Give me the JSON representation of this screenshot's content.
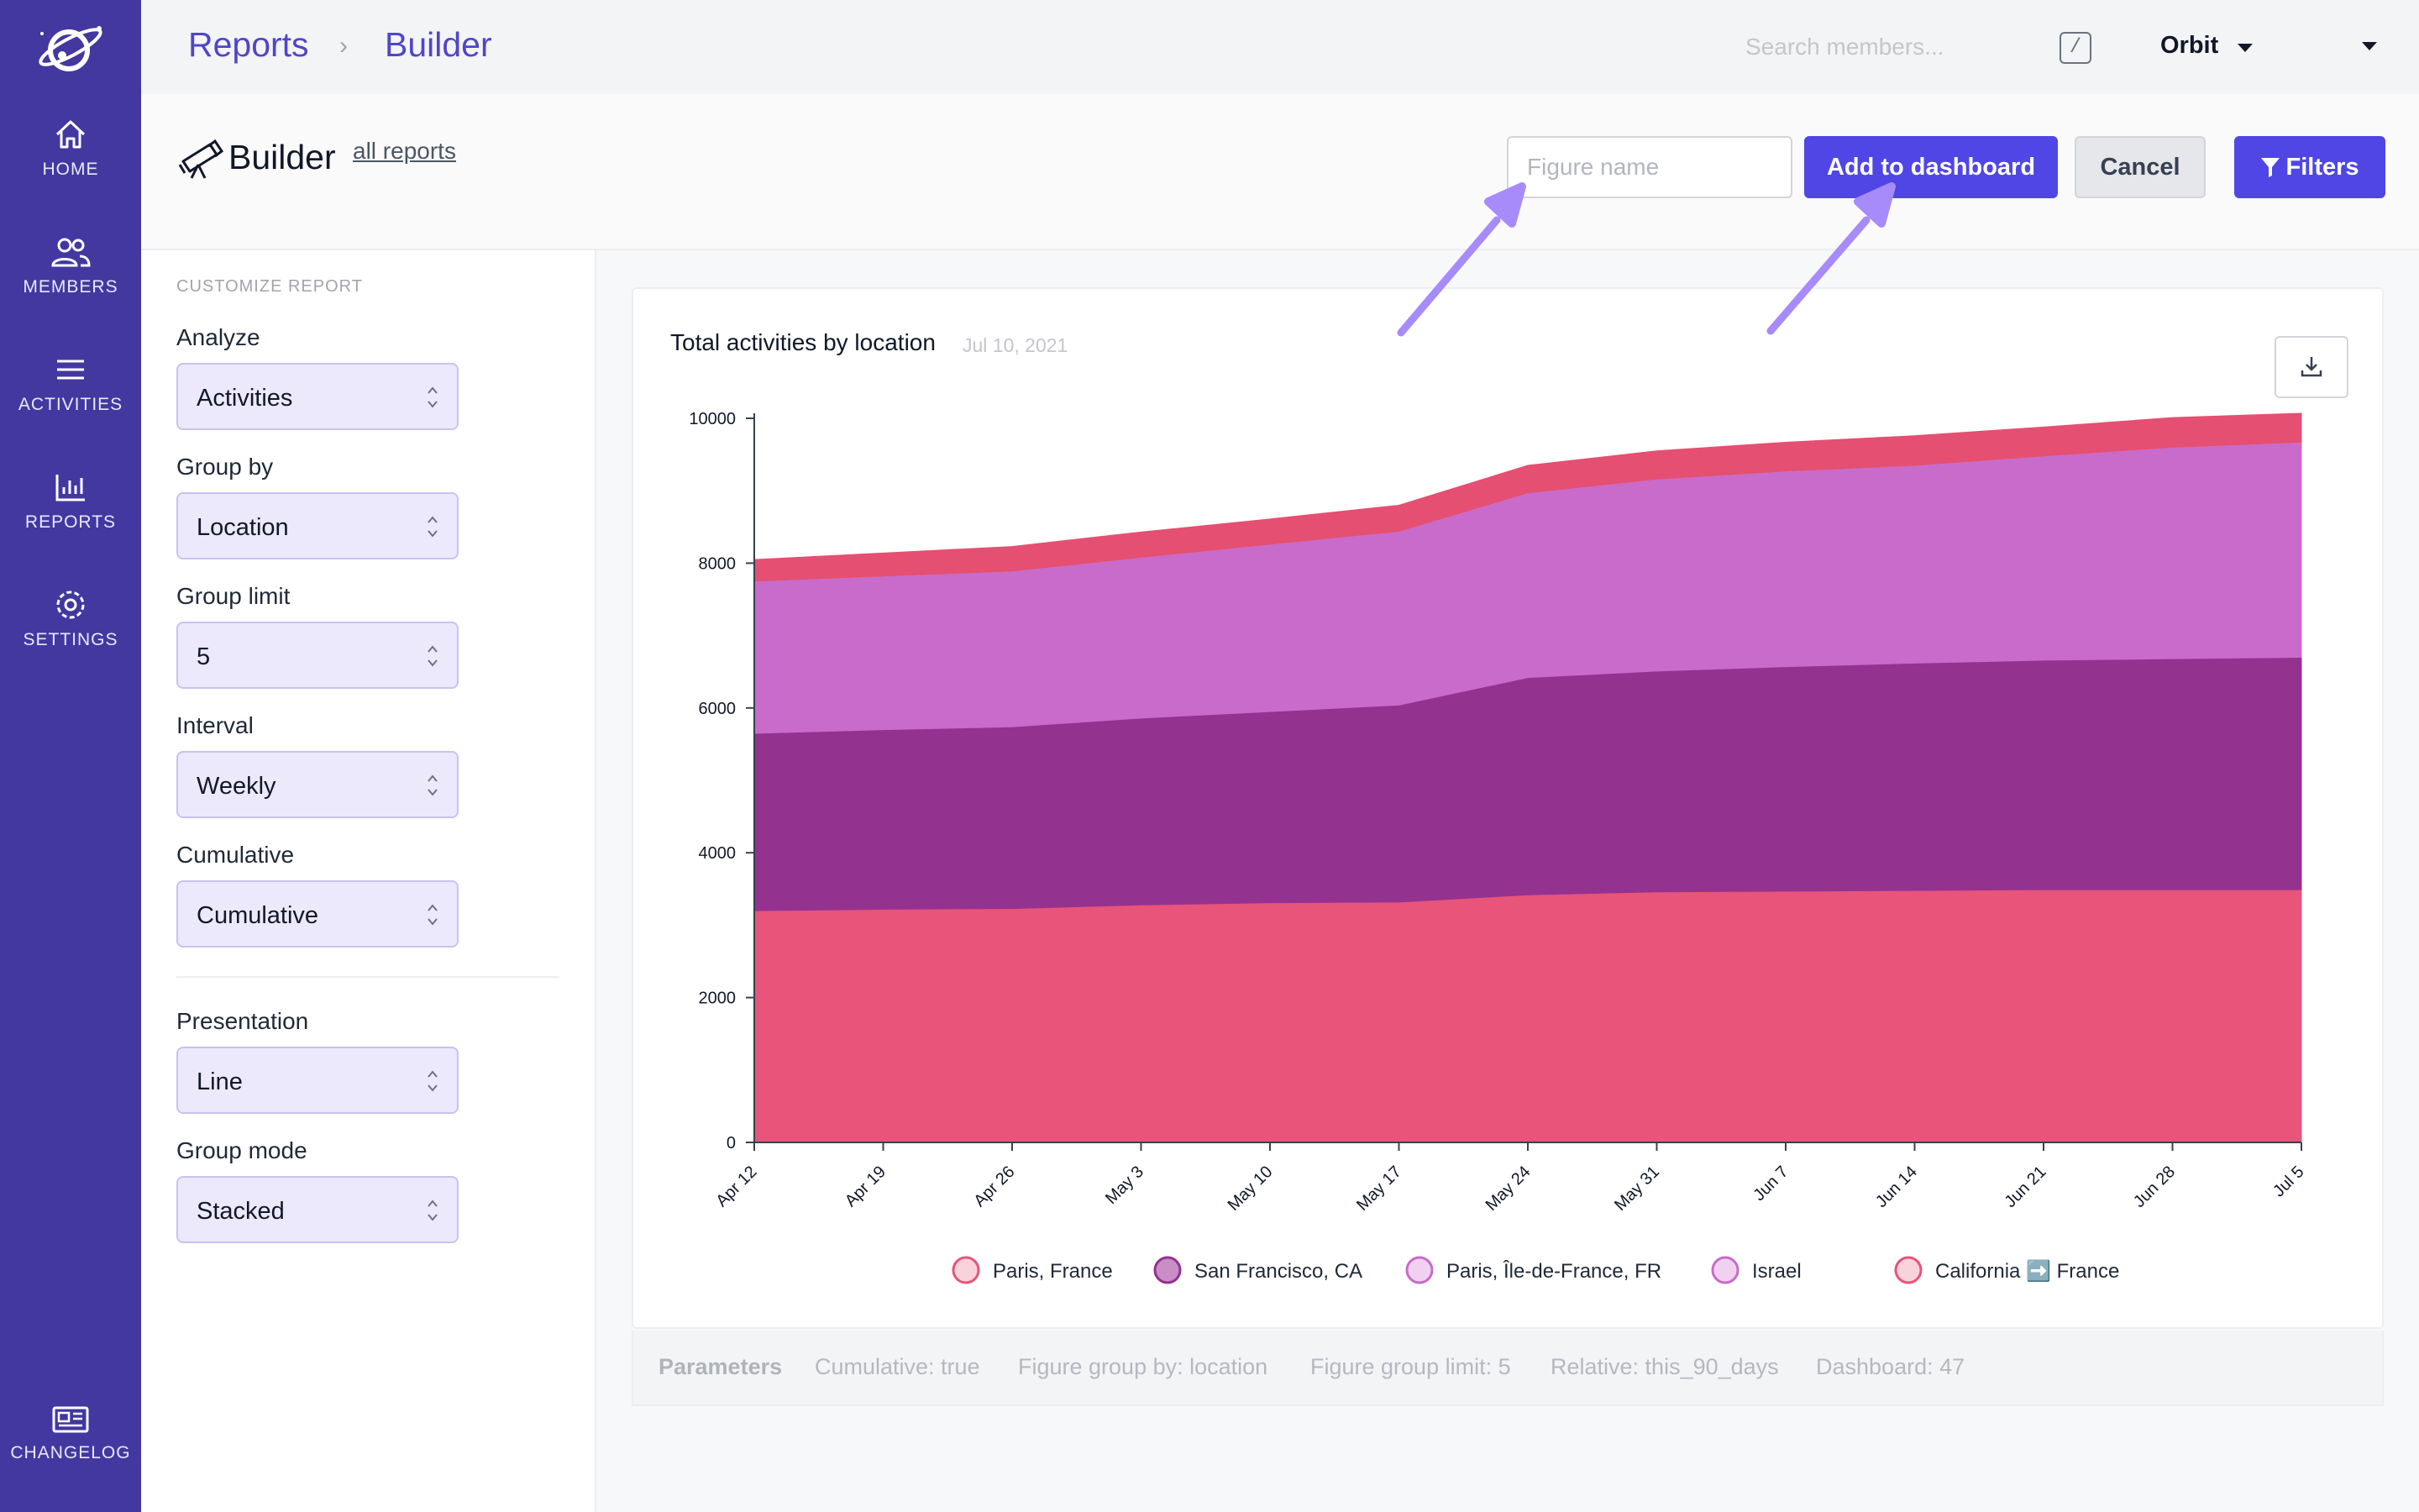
{
  "sidebar": {
    "items": [
      {
        "label": "HOME",
        "icon": "home-icon"
      },
      {
        "label": "MEMBERS",
        "icon": "members-icon"
      },
      {
        "label": "ACTIVITIES",
        "icon": "activities-icon"
      },
      {
        "label": "REPORTS",
        "icon": "reports-icon"
      },
      {
        "label": "SETTINGS",
        "icon": "settings-icon"
      }
    ],
    "bottom_item": {
      "label": "CHANGELOG",
      "icon": "newspaper-icon"
    }
  },
  "topbar": {
    "breadcrumb": [
      "Reports",
      "Builder"
    ],
    "search_placeholder": "Search members...",
    "shortcut_key": "/",
    "workspace": "Orbit"
  },
  "header": {
    "title": "Builder",
    "all_reports_link": "all reports",
    "figure_name_placeholder": "Figure name",
    "add_button": "Add to dashboard",
    "cancel_button": "Cancel",
    "filters_button": "Filters"
  },
  "customize": {
    "section_title": "CUSTOMIZE REPORT",
    "fields": [
      {
        "label": "Analyze",
        "value": "Activities"
      },
      {
        "label": "Group by",
        "value": "Location"
      },
      {
        "label": "Group limit",
        "value": "5"
      },
      {
        "label": "Interval",
        "value": "Weekly"
      },
      {
        "label": "Cumulative",
        "value": "Cumulative"
      },
      {
        "label": "Presentation",
        "value": "Line"
      },
      {
        "label": "Group mode",
        "value": "Stacked"
      }
    ]
  },
  "chart": {
    "title": "Total activities by location",
    "date": "Jul 10, 2021"
  },
  "chart_data": {
    "type": "area",
    "stacked": true,
    "x": [
      "Apr 12",
      "Apr 19",
      "Apr 26",
      "May 3",
      "May 10",
      "May 17",
      "May 24",
      "May 31",
      "Jun 7",
      "Jun 14",
      "Jun 21",
      "Jun 28",
      "Jul 5"
    ],
    "ylim": [
      0,
      10000
    ],
    "yticks": [
      0,
      2000,
      4000,
      6000,
      8000,
      10000
    ],
    "series": [
      {
        "name": "Paris, France",
        "color": "#e8547a",
        "values": [
          3200,
          3220,
          3230,
          3280,
          3310,
          3320,
          3420,
          3460,
          3470,
          3480,
          3490,
          3490,
          3490
        ]
      },
      {
        "name": "San Francisco, CA",
        "color": "#943290",
        "values": [
          2450,
          2480,
          2510,
          2580,
          2640,
          2720,
          3000,
          3050,
          3100,
          3140,
          3170,
          3190,
          3210
        ]
      },
      {
        "name": "Paris, Île-de-France, FR",
        "color": "#c86bca",
        "values": [
          2100,
          2120,
          2150,
          2220,
          2310,
          2400,
          2550,
          2650,
          2700,
          2730,
          2820,
          2920,
          2970
        ]
      },
      {
        "name": "Israel",
        "color": "#d79ad8",
        "values": [
          0,
          0,
          0,
          0,
          0,
          0,
          0,
          0,
          0,
          0,
          0,
          0,
          0
        ]
      },
      {
        "name": "California ➡️ France",
        "color": "#e54f72",
        "values": [
          300,
          320,
          340,
          350,
          350,
          360,
          380,
          390,
          400,
          410,
          400,
          410,
          400
        ]
      }
    ],
    "legend": [
      {
        "label": "Paris, France",
        "fill": "#f9d3dc",
        "stroke": "#e8547a"
      },
      {
        "label": "San Francisco, CA",
        "fill": "#c88ec5",
        "stroke": "#943290"
      },
      {
        "label": "Paris, Île-de-France, FR",
        "fill": "#f0d2f0",
        "stroke": "#c86bca"
      },
      {
        "label": "Israel",
        "fill": "#f0d2f0",
        "stroke": "#c86bca"
      },
      {
        "label": "California ➡️ France",
        "fill": "#f9d3dc",
        "stroke": "#e8547a"
      }
    ]
  },
  "parameters": {
    "label": "Parameters",
    "items": [
      "Cumulative: true",
      "Figure group by: location",
      "Figure group limit: 5",
      "Relative: this_90_days",
      "Dashboard: 47"
    ]
  },
  "colors": {
    "sidebar": "#4338a0",
    "accent": "#4f46e5",
    "select_bg": "#ece9fc",
    "annotation_arrow": "#a78bfa"
  }
}
